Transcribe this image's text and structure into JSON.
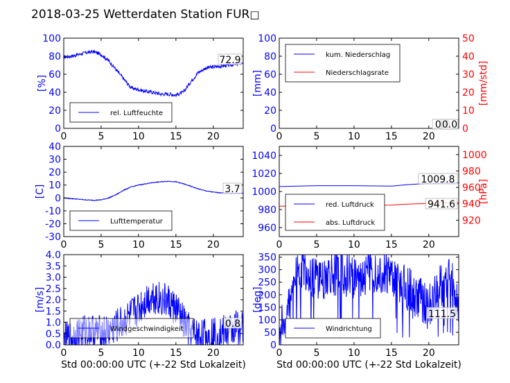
{
  "figure_title": "2018-03-25 Wetterdaten Station FUR",
  "title_glyph": "□",
  "colors": {
    "primary": "#0000ff",
    "secondary": "#ff0000",
    "text": "#000000"
  },
  "chart_data": [
    {
      "id": "humidity",
      "type": "line",
      "ylabel": "[%]",
      "ylim": [
        0,
        100
      ],
      "yticks": [
        0,
        20,
        40,
        60,
        80,
        100
      ],
      "xlim": [
        0,
        24
      ],
      "xticks": [
        0,
        5,
        10,
        15,
        20
      ],
      "series": [
        {
          "name": "rel. Luftfeuchte",
          "color": "#0000ff",
          "x": [
            0,
            1,
            2,
            3,
            4,
            5,
            6,
            7,
            8,
            9,
            10,
            11,
            12,
            13,
            14,
            15,
            16,
            17,
            18,
            19,
            20,
            21,
            22,
            23,
            24
          ],
          "y": [
            79,
            80,
            82,
            84,
            85,
            82,
            75,
            65,
            55,
            45,
            43,
            41,
            40,
            38,
            38,
            37,
            40,
            52,
            62,
            67,
            68,
            69,
            70,
            71,
            73
          ],
          "noise": 2
        }
      ],
      "value_labels": [
        "72.9"
      ],
      "legend": "lower-left"
    },
    {
      "id": "precipitation",
      "type": "line",
      "ylabel": "[mm]",
      "ylabel2": "[mm/std]",
      "ylim": [
        0,
        100
      ],
      "yticks": [
        0,
        20,
        40,
        60,
        80,
        100
      ],
      "ylim2": [
        0,
        50
      ],
      "yticks2": [
        0,
        10,
        20,
        30,
        40,
        50
      ],
      "xlim": [
        0,
        24
      ],
      "xticks": [
        0,
        5,
        10,
        15,
        20
      ],
      "series": [
        {
          "name": "kum. Niederschlag",
          "color": "#0000ff",
          "axis": "left",
          "x": [
            0,
            24
          ],
          "y": [
            0,
            0
          ]
        },
        {
          "name": "Niederschlagsrate",
          "color": "#ff0000",
          "axis": "right",
          "x": [
            0,
            24
          ],
          "y": [
            0,
            0
          ]
        }
      ],
      "value_labels": [
        "0.0",
        "0.0"
      ],
      "legend": "upper-left"
    },
    {
      "id": "temperature",
      "type": "line",
      "ylabel": "[C]",
      "ylim": [
        -30,
        40
      ],
      "yticks": [
        -30,
        -20,
        -10,
        0,
        10,
        20,
        30,
        40
      ],
      "xlim": [
        0,
        24
      ],
      "xticks": [
        0,
        5,
        10,
        15,
        20
      ],
      "series": [
        {
          "name": "Lufttemperatur",
          "color": "#0000ff",
          "x": [
            0,
            1,
            2,
            3,
            4,
            5,
            6,
            7,
            8,
            9,
            10,
            11,
            12,
            13,
            14,
            15,
            16,
            17,
            18,
            19,
            20,
            21,
            22,
            23,
            24
          ],
          "y": [
            0,
            -0.5,
            -1,
            -1.5,
            -1.8,
            -1.5,
            0,
            2.5,
            6,
            8.5,
            10,
            11,
            12,
            12.5,
            13,
            12.5,
            11,
            9,
            7,
            5.5,
            4.5,
            4,
            3.8,
            3.7,
            3.7
          ],
          "noise": 0.3
        }
      ],
      "value_labels": [
        "3.7"
      ],
      "legend": "lower-left"
    },
    {
      "id": "pressure",
      "type": "line",
      "ylabel2": "[hPa]",
      "ylim": [
        950,
        1050
      ],
      "yticks": [
        960,
        980,
        1000,
        1020,
        1040
      ],
      "ylim2": [
        900,
        1010
      ],
      "yticks2": [
        920,
        940,
        960,
        980,
        1000
      ],
      "xlim": [
        0,
        24
      ],
      "xticks": [
        0,
        5,
        10,
        15,
        20
      ],
      "series": [
        {
          "name": "red. Luftdruck",
          "color": "#0000ff",
          "axis": "left",
          "x": [
            0,
            5,
            10,
            15,
            17,
            20,
            24
          ],
          "y": [
            1005.5,
            1006.5,
            1006.5,
            1006,
            1007.5,
            1009,
            1009.8
          ]
        },
        {
          "name": "abs. Luftdruck",
          "color": "#ff0000",
          "axis": "right",
          "x": [
            0,
            5,
            10,
            15,
            17,
            20,
            24
          ],
          "y": [
            937,
            938,
            938,
            938.5,
            939.5,
            940.5,
            941.6
          ]
        }
      ],
      "value_labels": [
        "1009.8",
        "941.6"
      ],
      "legend": "lower-left"
    },
    {
      "id": "windspeed",
      "type": "line",
      "ylabel": "[m/s]",
      "xlabel": "Std 00:00:00 UTC (+-22 Std Lokalzeit)",
      "ylim": [
        0,
        4
      ],
      "yticks": [
        0.0,
        0.5,
        1.0,
        1.5,
        2.0,
        2.5,
        3.0,
        3.5,
        4.0
      ],
      "xlim": [
        0,
        24
      ],
      "xticks": [
        0,
        5,
        10,
        15,
        20
      ],
      "series": [
        {
          "name": "Windgeschwindigkeit",
          "color": "#0000ff",
          "x": [
            0,
            1,
            2,
            3,
            4,
            5,
            6,
            7,
            8,
            9,
            10,
            11,
            12,
            13,
            14,
            15,
            16,
            17,
            18,
            19,
            20,
            21,
            22,
            23,
            24
          ],
          "y": [
            0.2,
            0.3,
            0.5,
            0.6,
            0.6,
            0.5,
            0.6,
            0.8,
            1.0,
            1.3,
            1.6,
            2.0,
            2.2,
            2.0,
            1.9,
            1.6,
            1.0,
            0.5,
            0.4,
            0.4,
            0.5,
            0.5,
            0.6,
            0.8,
            0.8
          ],
          "noise": 0.8
        }
      ],
      "value_labels": [
        "0.8"
      ],
      "legend": "lower-left"
    },
    {
      "id": "winddirection",
      "type": "line",
      "ylabel": "[deg]",
      "xlabel": "Std 00:00:00 UTC (+-22 Std Lokalzeit)",
      "ylim": [
        0,
        360
      ],
      "yticks": [
        0,
        50,
        100,
        150,
        200,
        250,
        300,
        350
      ],
      "xlim": [
        0,
        24
      ],
      "xticks": [
        0,
        5,
        10,
        15,
        20
      ],
      "series": [
        {
          "name": "Windrichtung",
          "color": "#0000ff",
          "x": [
            0,
            1,
            2,
            3,
            4,
            5,
            6,
            7,
            8,
            9,
            10,
            11,
            12,
            13,
            14,
            15,
            16,
            17,
            18,
            19,
            20,
            21,
            22,
            23,
            24
          ],
          "y": [
            50,
            120,
            260,
            300,
            290,
            260,
            270,
            280,
            290,
            280,
            270,
            280,
            290,
            300,
            290,
            280,
            260,
            230,
            200,
            180,
            150,
            200,
            260,
            300,
            110
          ],
          "noise": 90
        }
      ],
      "value_labels": [
        "111.5"
      ],
      "legend": "lower-left"
    }
  ]
}
